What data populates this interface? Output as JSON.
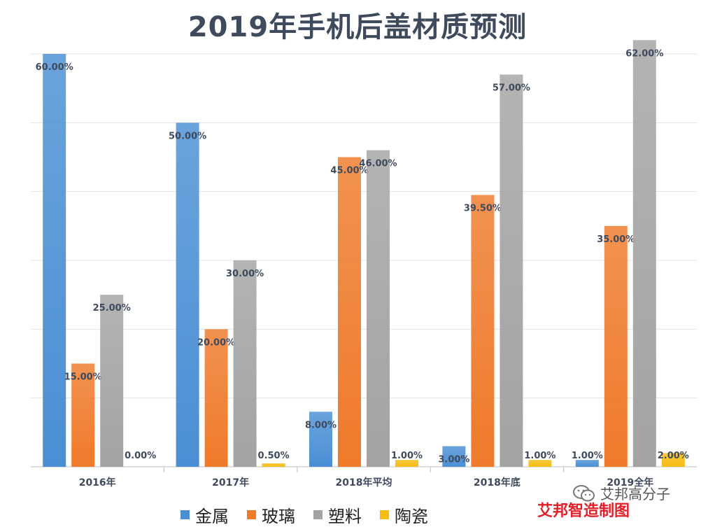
{
  "chart_data": {
    "type": "bar",
    "title": "2019年手机后盖材质预测",
    "categories": [
      "2016年",
      "2017年",
      "2018年平均",
      "2018年底",
      "2019全年"
    ],
    "series": [
      {
        "name": "金属",
        "color": "#4a8fd4",
        "values": [
          60,
          50,
          8,
          3,
          1
        ],
        "labels": [
          "60.00%",
          "50.00%",
          "8.00%",
          "3.00%",
          "1.00%"
        ]
      },
      {
        "name": "玻璃",
        "color": "#ef7a2a",
        "values": [
          15,
          20,
          45,
          39.5,
          35
        ],
        "labels": [
          "15.00%",
          "20.00%",
          "45.00%",
          "39.50%",
          "35.00%"
        ]
      },
      {
        "name": "塑料",
        "color": "#a3a3a3",
        "values": [
          25,
          30,
          46,
          57,
          62
        ],
        "labels": [
          "25.00%",
          "30.00%",
          "46.00%",
          "57.00%",
          "62.00%"
        ]
      },
      {
        "name": "陶瓷",
        "color": "#f5bd12",
        "values": [
          0,
          0.5,
          1,
          1,
          2
        ],
        "labels": [
          "0.00%",
          "0.50%",
          "1.00%",
          "1.00%",
          "2.00%"
        ]
      }
    ],
    "ylim": [
      0,
      60
    ],
    "grid": true,
    "legend_position": "bottom",
    "xlabel": "",
    "ylabel": ""
  },
  "credit": "艾邦智造制图",
  "watermark": "艾邦高分子",
  "icons": {
    "watermark": "wechat-icon"
  }
}
